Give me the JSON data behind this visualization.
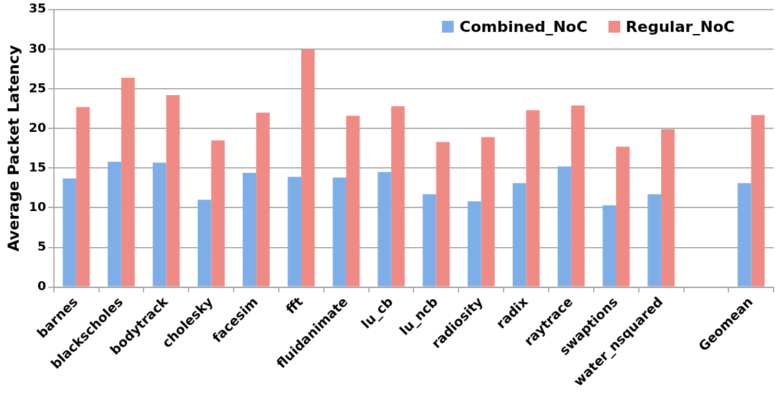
{
  "chart_data": {
    "type": "bar",
    "ylabel": "Average Packet Latency",
    "categories": [
      "barnes",
      "blackscholes",
      "bodytrack",
      "cholesky",
      "facesim",
      "fft",
      "fluidanimate",
      "lu_cb",
      "lu_ncb",
      "radiosity",
      "radix",
      "raytrace",
      "swaptions",
      "water_nsquared",
      null,
      "Geomean"
    ],
    "series": [
      {
        "name": "Combined_NoC",
        "color": "#7eaee8",
        "values": [
          13.7,
          15.8,
          15.7,
          11.0,
          14.4,
          13.9,
          13.8,
          14.5,
          11.7,
          10.8,
          13.1,
          15.2,
          10.3,
          11.7,
          null,
          13.1
        ]
      },
      {
        "name": "Regular_NoC",
        "color": "#ef8a84",
        "values": [
          22.7,
          26.4,
          24.2,
          18.5,
          22.0,
          30.0,
          21.6,
          22.8,
          18.3,
          18.9,
          22.3,
          22.9,
          17.7,
          19.9,
          null,
          21.7
        ]
      }
    ],
    "ylim": [
      0,
      35
    ],
    "yticks": [
      0,
      5,
      10,
      15,
      20,
      25,
      30,
      35
    ],
    "grid": "y",
    "legend": "top right"
  }
}
